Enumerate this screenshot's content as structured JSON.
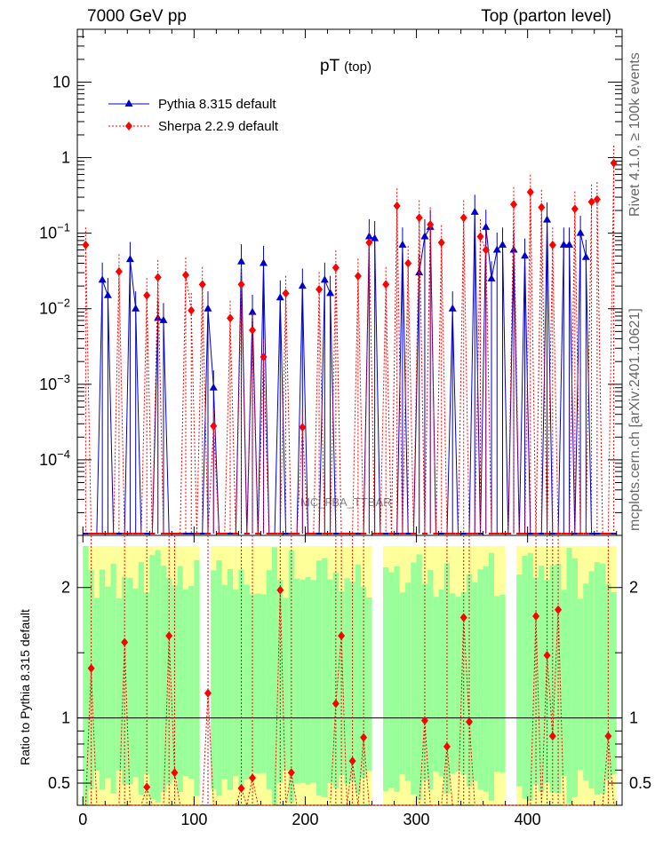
{
  "header": {
    "energy_label": "7000 GeV pp",
    "process_label": "Top (parton level)"
  },
  "plot_title": "pT",
  "plot_title_sub": "(top)",
  "side_labels": {
    "rivet": "Rivet 4.1.0, ≥ 100k events",
    "mcplots": "mcplots.cern.ch [arXiv:2401.10621]"
  },
  "watermark": "MC_FBA_TTBAR",
  "ratio_ylabel": "Ratio to Pythia 8.315 default",
  "colors": {
    "pythia": "#0000cc",
    "sherpa": "#ff0000",
    "band_inner": "#99ff99",
    "band_outer": "#ffff99"
  },
  "chart_data": [
    {
      "type": "line",
      "panel": "main",
      "yscale": "log",
      "xlim": [
        -5,
        485
      ],
      "ylim": [
        1e-05,
        50
      ],
      "y_ticks": [
        "10^-4",
        "10^-3",
        "10^-2",
        "10^-1",
        "1",
        "10"
      ],
      "legend": [
        "Pythia 8.315 default",
        "Sherpa 2.2.9 default"
      ],
      "legend_position": "top-left",
      "bin_width": 5,
      "series": [
        {
          "name": "Pythia 8.315 default",
          "marker": "triangle",
          "points": [
            [
              17.5,
              0.024
            ],
            [
              22.5,
              0.015
            ],
            [
              42.5,
              0.045
            ],
            [
              47.5,
              0.01
            ],
            [
              67.5,
              0.0075
            ],
            [
              72.5,
              0.007
            ],
            [
              112.5,
              0.01
            ],
            [
              117.5,
              0.0009
            ],
            [
              142.5,
              0.042
            ],
            [
              152.5,
              0.009
            ],
            [
              162.5,
              0.04
            ],
            [
              177.5,
              0.014
            ],
            [
              197.5,
              0.02
            ],
            [
              217.5,
              0.024
            ],
            [
              222.5,
              0.016
            ],
            [
              257.5,
              0.09
            ],
            [
              262.5,
              0.085
            ],
            [
              287.5,
              0.07
            ],
            [
              302.5,
              0.03
            ],
            [
              307.5,
              0.09
            ],
            [
              312.5,
              0.12
            ],
            [
              332.5,
              0.01
            ],
            [
              352.5,
              0.19
            ],
            [
              362.5,
              0.12
            ],
            [
              367.5,
              0.025
            ],
            [
              372.5,
              0.06
            ],
            [
              377.5,
              0.07
            ],
            [
              387.5,
              0.06
            ],
            [
              397.5,
              0.05
            ],
            [
              417.5,
              0.15
            ],
            [
              432.5,
              0.07
            ],
            [
              437.5,
              0.07
            ],
            [
              447.5,
              0.1
            ],
            [
              452.5,
              0.048
            ]
          ]
        },
        {
          "name": "Sherpa 2.2.9 default",
          "marker": "diamond",
          "points": [
            [
              2.5,
              0.07
            ],
            [
              32.5,
              0.031
            ],
            [
              57.5,
              0.015
            ],
            [
              67.5,
              0.026
            ],
            [
              92.5,
              0.028
            ],
            [
              97.5,
              0.0095
            ],
            [
              107.5,
              0.021
            ],
            [
              117.5,
              0.00028
            ],
            [
              132.5,
              0.0075
            ],
            [
              142.5,
              0.021
            ],
            [
              152.5,
              0.0052
            ],
            [
              162.5,
              0.0023
            ],
            [
              182.5,
              0.016
            ],
            [
              197.5,
              0.00027
            ],
            [
              212.5,
              0.018
            ],
            [
              227.5,
              0.035
            ],
            [
              247.5,
              0.027
            ],
            [
              257.5,
              0.075
            ],
            [
              272.5,
              0.021
            ],
            [
              282.5,
              0.23
            ],
            [
              292.5,
              0.04
            ],
            [
              302.5,
              0.16
            ],
            [
              312.5,
              0.13
            ],
            [
              322.5,
              0.075
            ],
            [
              342.5,
              0.16
            ],
            [
              357.5,
              0.09
            ],
            [
              362.5,
              0.06
            ],
            [
              387.5,
              0.24
            ],
            [
              402.5,
              0.35
            ],
            [
              412.5,
              0.22
            ],
            [
              422.5,
              0.07
            ],
            [
              442.5,
              0.21
            ],
            [
              457.5,
              0.26
            ],
            [
              462.5,
              0.28
            ],
            [
              477.5,
              0.85
            ]
          ]
        }
      ]
    },
    {
      "type": "line",
      "panel": "ratio",
      "xlabel": "",
      "ylabel": "Ratio to Pythia 8.315 default",
      "xlim": [
        -5,
        485
      ],
      "ylim": [
        0.33,
        2.4
      ],
      "x_ticks": [
        0,
        100,
        200,
        300,
        400
      ],
      "y_ticks": [
        "0.5",
        "1",
        "2"
      ],
      "reference_line": 1,
      "series": [
        {
          "name": "Sherpa 2.2.9 / Pythia 8.315",
          "points": [
            [
              7.5,
              1.38
            ],
            [
              37.5,
              1.58
            ],
            [
              57.5,
              0.47
            ],
            [
              77.5,
              1.63
            ],
            [
              82.5,
              0.58
            ],
            [
              112.5,
              1.19
            ],
            [
              142.5,
              0.46
            ],
            [
              152.5,
              0.54
            ],
            [
              177.5,
              1.98
            ],
            [
              187.5,
              0.58
            ],
            [
              227.5,
              1.11
            ],
            [
              232.5,
              1.63
            ],
            [
              242.5,
              0.67
            ],
            [
              252.5,
              0.85
            ],
            [
              307.5,
              0.98
            ],
            [
              327.5,
              0.78
            ],
            [
              342.5,
              1.77
            ],
            [
              347.5,
              0.97
            ],
            [
              407.5,
              1.78
            ],
            [
              417.5,
              1.48
            ],
            [
              422.5,
              0.86
            ],
            [
              427.5,
              1.83
            ],
            [
              472.5,
              0.86
            ]
          ]
        }
      ]
    }
  ]
}
